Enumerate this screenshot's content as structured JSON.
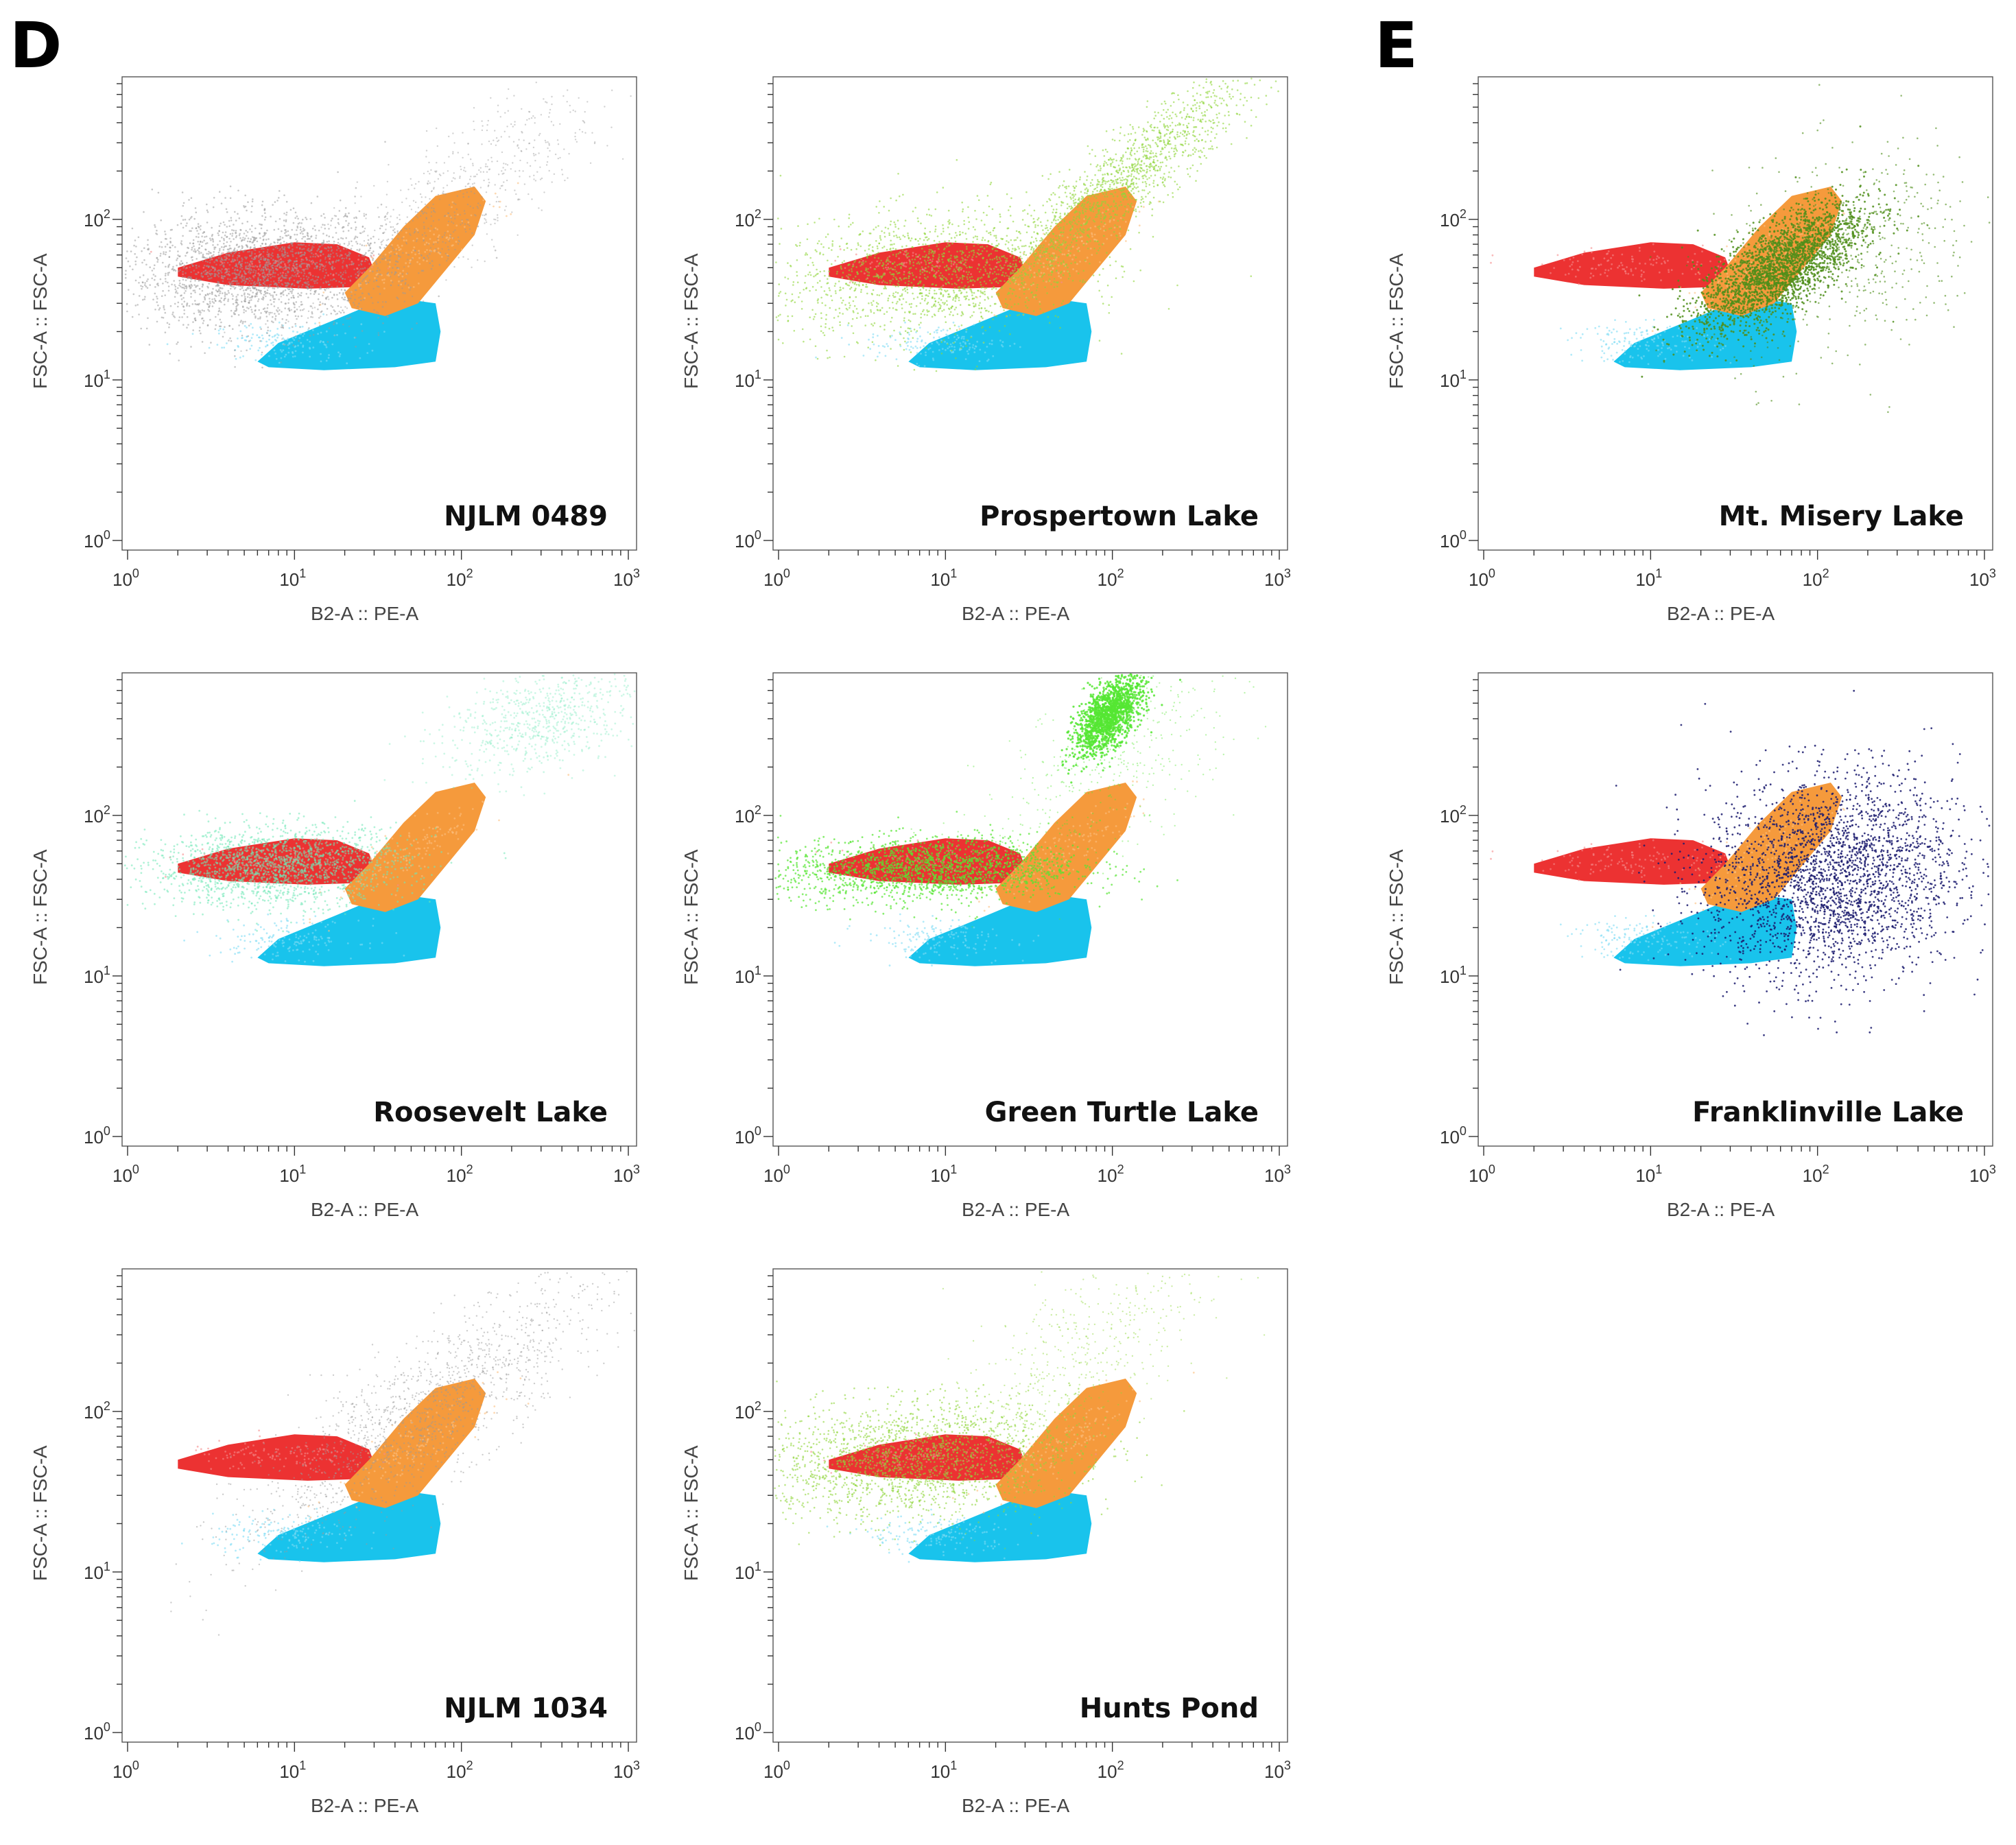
{
  "figure_labels": [
    "D",
    "E"
  ],
  "colors": {
    "red": "#ec3232",
    "orange": "#f59a3c",
    "cyan": "#19c3ec",
    "gray": "#9a9a9a",
    "lightgreen": "#8fd63a",
    "mint": "#6fe7b6",
    "brightgreen": "#55e632",
    "darkgreen": "#4f8e1a",
    "navy": "#1b1b6e"
  },
  "chart_data": [
    {
      "id": "njlm0489",
      "group": "D",
      "type": "scatter",
      "title": "NJLM 0489",
      "xlabel": "B2-A :: PE-A",
      "ylabel": "FSC-A :: FSC-A",
      "xscale": "log",
      "yscale": "log",
      "xlim": [
        1,
        1000
      ],
      "ylim": [
        1,
        700
      ],
      "xticks": [
        "10^0",
        "10^1",
        "10^2",
        "10^3"
      ],
      "yticks": [
        "10^0",
        "10^1",
        "10^2"
      ],
      "sample_population": {
        "color": "gray",
        "shape": "diffuse cloud over red gate, spreading toward upper right"
      },
      "gated_populations": [
        "red",
        "orange",
        "cyan"
      ]
    },
    {
      "id": "prospertown",
      "group": "D",
      "type": "scatter",
      "title": "Prospertown Lake",
      "xlabel": "B2-A :: PE-A",
      "ylabel": "FSC-A :: FSC-A",
      "xscale": "log",
      "yscale": "log",
      "xlim": [
        1,
        1000
      ],
      "ylim": [
        1,
        700
      ],
      "xticks": [
        "10^0",
        "10^1",
        "10^2",
        "10^3"
      ],
      "yticks": [
        "10^0",
        "10^1",
        "10^2"
      ],
      "sample_population": {
        "color": "lightgreen",
        "shape": "band overlapping red gate plus diagonal streak to upper right"
      },
      "gated_populations": [
        "red",
        "orange",
        "cyan"
      ]
    },
    {
      "id": "mtmisery",
      "group": "E",
      "type": "scatter",
      "title": "Mt. Misery Lake",
      "xlabel": "B2-A :: PE-A",
      "ylabel": "FSC-A :: FSC-A",
      "xscale": "log",
      "yscale": "log",
      "xlim": [
        1,
        1000
      ],
      "ylim": [
        1,
        700
      ],
      "xticks": [
        "10^0",
        "10^1",
        "10^2",
        "10^3"
      ],
      "yticks": [
        "10^0",
        "10^1",
        "10^2"
      ],
      "sample_population": {
        "color": "darkgreen",
        "shape": "dense cluster overlapping orange gate"
      },
      "gated_populations": [
        "red",
        "orange",
        "cyan"
      ]
    },
    {
      "id": "roosevelt",
      "group": "D",
      "type": "scatter",
      "title": "Roosevelt Lake",
      "xlabel": "B2-A :: PE-A",
      "ylabel": "FSC-A :: FSC-A",
      "xscale": "log",
      "yscale": "log",
      "xlim": [
        1,
        1000
      ],
      "ylim": [
        1,
        700
      ],
      "xticks": [
        "10^0",
        "10^1",
        "10^2",
        "10^3"
      ],
      "yticks": [
        "10^0",
        "10^1",
        "10^2"
      ],
      "sample_population": {
        "color": "mint",
        "shape": "band over red gate plus faint streak to upper right"
      },
      "gated_populations": [
        "red",
        "orange",
        "cyan"
      ]
    },
    {
      "id": "greenturtle",
      "group": "D",
      "type": "scatter",
      "title": "Green Turtle Lake",
      "xlabel": "B2-A :: PE-A",
      "ylabel": "FSC-A :: FSC-A",
      "xscale": "log",
      "yscale": "log",
      "xlim": [
        1,
        1000
      ],
      "ylim": [
        1,
        700
      ],
      "xticks": [
        "10^0",
        "10^1",
        "10^2",
        "10^3"
      ],
      "yticks": [
        "10^0",
        "10^1",
        "10^2"
      ],
      "sample_population": {
        "color": "brightgreen",
        "shape": "band over red gate plus dense blob near top"
      },
      "gated_populations": [
        "red",
        "orange",
        "cyan"
      ]
    },
    {
      "id": "franklinville",
      "group": "E",
      "type": "scatter",
      "title": "Franklinville Lake",
      "xlabel": "B2-A :: PE-A",
      "ylabel": "FSC-A :: FSC-A",
      "xscale": "log",
      "yscale": "log",
      "xlim": [
        1,
        1000
      ],
      "ylim": [
        1,
        700
      ],
      "xticks": [
        "10^0",
        "10^1",
        "10^2",
        "10^3"
      ],
      "yticks": [
        "10^0",
        "10^1",
        "10^2"
      ],
      "sample_population": {
        "color": "navy",
        "shape": "broad scattered cloud centered right of orange gate"
      },
      "gated_populations": [
        "red",
        "orange",
        "cyan"
      ]
    },
    {
      "id": "njlm1034",
      "group": "D",
      "type": "scatter",
      "title": "NJLM 1034",
      "xlabel": "B2-A :: PE-A",
      "ylabel": "FSC-A :: FSC-A",
      "xscale": "log",
      "yscale": "log",
      "xlim": [
        1,
        1000
      ],
      "ylim": [
        1,
        700
      ],
      "xticks": [
        "10^0",
        "10^1",
        "10^2",
        "10^3"
      ],
      "yticks": [
        "10^0",
        "10^1",
        "10^2"
      ],
      "sample_population": {
        "color": "gray",
        "shape": "sparse diagonal streak to upper right"
      },
      "gated_populations": [
        "red",
        "orange",
        "cyan"
      ]
    },
    {
      "id": "huntspond",
      "group": "D",
      "type": "scatter",
      "title": "Hunts Pond",
      "xlabel": "B2-A :: PE-A",
      "ylabel": "FSC-A :: FSC-A",
      "xscale": "log",
      "yscale": "log",
      "xlim": [
        1,
        1000
      ],
      "ylim": [
        1,
        700
      ],
      "xticks": [
        "10^0",
        "10^1",
        "10^2",
        "10^3"
      ],
      "yticks": [
        "10^0",
        "10^1",
        "10^2"
      ],
      "sample_population": {
        "color": "lightgreen",
        "shape": "band over red gate spreading left and upward"
      },
      "gated_populations": [
        "red",
        "orange",
        "cyan"
      ]
    }
  ]
}
